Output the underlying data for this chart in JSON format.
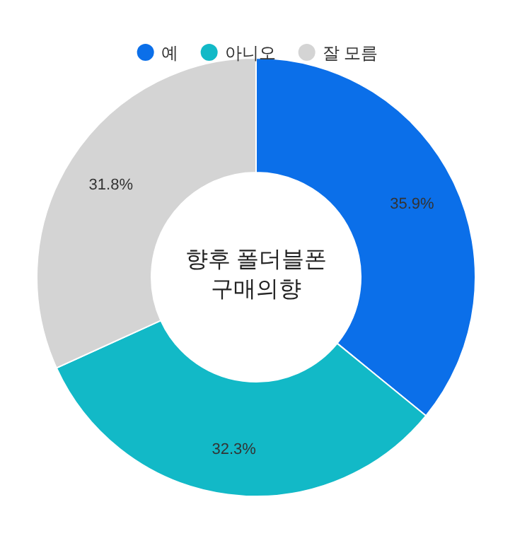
{
  "chart_data": {
    "type": "donut",
    "title": "향후 폴더블폰\n구매의향",
    "categories": [
      "예",
      "아니오",
      "잘 모름"
    ],
    "values": [
      35.9,
      32.3,
      31.8
    ],
    "colors": [
      "#0b6fe9",
      "#12b9c7",
      "#d4d4d4"
    ],
    "value_labels": [
      "35.9%",
      "32.3%",
      "31.8%"
    ],
    "legend": "top"
  }
}
